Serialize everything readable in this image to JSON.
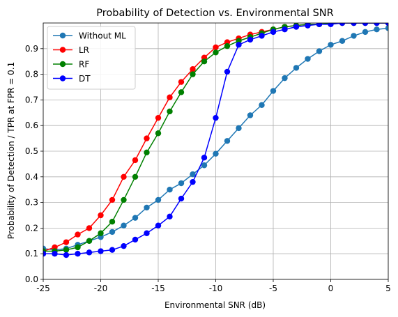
{
  "chart_data": {
    "type": "line",
    "title": "Probability of Detection vs. Environmental SNR",
    "xlabel": "Environmental SNR (dB)",
    "ylabel": "Probability of Detection / TPR at FPR = 0.1",
    "xlim": [
      -25,
      5
    ],
    "ylim": [
      0.0,
      1.0
    ],
    "xticks": [
      "-25",
      "-20",
      "-15",
      "-10",
      "-5",
      "0",
      "5"
    ],
    "yticks": [
      "0.0",
      "0.1",
      "0.2",
      "0.3",
      "0.4",
      "0.5",
      "0.6",
      "0.7",
      "0.8",
      "0.9"
    ],
    "grid": true,
    "legend_position": "upper-left",
    "x": [
      -25,
      -24,
      -23,
      -22,
      -21,
      -20,
      -19,
      -18,
      -17,
      -16,
      -15,
      -14,
      -13,
      -12,
      -11,
      -10,
      -9,
      -8,
      -7,
      -6,
      -5,
      -4,
      -3,
      -2,
      -1,
      0,
      1,
      2,
      3,
      4,
      5
    ],
    "series": [
      {
        "name": "Without ML",
        "color": "#1f77b4",
        "values": [
          0.12,
          0.115,
          0.12,
          0.135,
          0.15,
          0.165,
          0.185,
          0.21,
          0.24,
          0.28,
          0.31,
          0.35,
          0.375,
          0.41,
          0.445,
          0.49,
          0.54,
          0.59,
          0.64,
          0.68,
          0.735,
          0.785,
          0.825,
          0.86,
          0.89,
          0.915,
          0.93,
          0.95,
          0.965,
          0.975,
          0.98
        ]
      },
      {
        "name": "LR",
        "color": "#ff0000",
        "values": [
          0.11,
          0.125,
          0.145,
          0.175,
          0.2,
          0.25,
          0.31,
          0.4,
          0.465,
          0.55,
          0.63,
          0.71,
          0.77,
          0.82,
          0.865,
          0.905,
          0.925,
          0.94,
          0.955,
          0.965,
          0.975,
          0.985,
          0.99,
          0.995,
          0.995,
          1.0,
          1.0,
          1.0,
          1.0,
          1.0,
          1.0
        ]
      },
      {
        "name": "RF",
        "color": "#008000",
        "values": [
          0.11,
          0.11,
          0.115,
          0.125,
          0.15,
          0.18,
          0.225,
          0.31,
          0.4,
          0.495,
          0.57,
          0.655,
          0.73,
          0.8,
          0.85,
          0.885,
          0.91,
          0.93,
          0.945,
          0.96,
          0.975,
          0.985,
          0.99,
          0.995,
          0.995,
          1.0,
          1.0,
          1.0,
          1.0,
          1.0,
          1.0
        ]
      },
      {
        "name": "DT",
        "color": "#0000ff",
        "values": [
          0.1,
          0.1,
          0.095,
          0.1,
          0.105,
          0.11,
          0.115,
          0.13,
          0.155,
          0.18,
          0.21,
          0.245,
          0.315,
          0.38,
          0.475,
          0.63,
          0.81,
          0.915,
          0.935,
          0.95,
          0.965,
          0.975,
          0.985,
          0.99,
          0.995,
          0.995,
          1.0,
          1.0,
          1.0,
          1.0,
          1.0
        ]
      }
    ]
  }
}
